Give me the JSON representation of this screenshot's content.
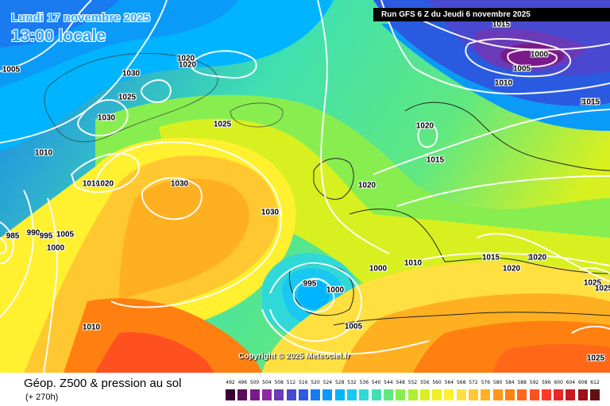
{
  "header": {
    "date": "Lundi 17 novembre 2025",
    "local_time": "13:00 locale",
    "run": "Run GFS 6 Z du Jeudi 6 novembre 2025"
  },
  "copyright": "Copyright © 2025 Meteociel.fr",
  "footer": {
    "title": "Géop. Z500 & pression au sol",
    "subtitle": "(+ 270h)"
  },
  "scale": {
    "values": [
      "492",
      "496",
      "500",
      "504",
      "508",
      "512",
      "516",
      "520",
      "524",
      "528",
      "532",
      "536",
      "540",
      "544",
      "548",
      "552",
      "556",
      "560",
      "564",
      "568",
      "572",
      "576",
      "580",
      "584",
      "588",
      "592",
      "596",
      "600",
      "604",
      "608",
      "612"
    ],
    "colors": [
      "#3a0033",
      "#5a0a5a",
      "#7a1a8a",
      "#8a2aa0",
      "#6a3ab8",
      "#4848d0",
      "#2a5ae0",
      "#1a7af0",
      "#0a9af8",
      "#00b4ff",
      "#18c8f0",
      "#30d8d8",
      "#40e0b0",
      "#60e880",
      "#88ee50",
      "#b0f030",
      "#d8f020",
      "#f0f020",
      "#fff030",
      "#ffe040",
      "#ffc830",
      "#ffb020",
      "#ff9818",
      "#ff8010",
      "#ff6818",
      "#ff5020",
      "#ff3828",
      "#e82828",
      "#c81820",
      "#a01018",
      "#601010"
    ]
  },
  "isobar_labels": [
    {
      "text": "1005"
    },
    {
      "text": "1030"
    },
    {
      "text": "1020"
    },
    {
      "text": "1020"
    },
    {
      "text": "1025"
    },
    {
      "text": "1030"
    },
    {
      "text": "1025"
    },
    {
      "text": "1010"
    },
    {
      "text": "1010"
    },
    {
      "text": "1020"
    },
    {
      "text": "1030"
    },
    {
      "text": "1030"
    },
    {
      "text": "985"
    },
    {
      "text": "990"
    },
    {
      "text": "995"
    },
    {
      "text": "1005"
    },
    {
      "text": "1000"
    },
    {
      "text": "1010"
    },
    {
      "text": "1000"
    },
    {
      "text": "1005"
    },
    {
      "text": "1010"
    },
    {
      "text": "1015"
    },
    {
      "text": "1020"
    },
    {
      "text": "1020"
    },
    {
      "text": "1015"
    },
    {
      "text": "1015"
    },
    {
      "text": "1020"
    },
    {
      "text": "1015"
    },
    {
      "text": "1025"
    },
    {
      "text": "1025"
    },
    {
      "text": "1020"
    },
    {
      "text": "1005"
    },
    {
      "text": "1010"
    },
    {
      "text": "1015"
    },
    {
      "text": "1000"
    },
    {
      "text": "1020"
    },
    {
      "text": "995"
    },
    {
      "text": "1000"
    },
    {
      "text": "1025"
    }
  ]
}
